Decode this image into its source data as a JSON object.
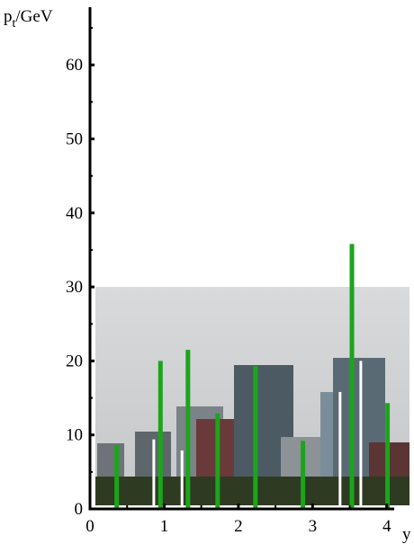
{
  "chart_data": {
    "type": "bar",
    "y_label": {
      "main": "p",
      "sub": "t",
      "unit": "/GeV"
    },
    "x_label": "y",
    "xlim": [
      0,
      4.1
    ],
    "ylim": [
      0,
      67.8
    ],
    "xticks": [
      0,
      1,
      2,
      3,
      4
    ],
    "xminor": [
      0.5,
      1.5,
      2.5,
      3.5
    ],
    "yticks": [
      0,
      10,
      20,
      30,
      40,
      50,
      60
    ],
    "yminor": [
      5,
      15,
      25,
      35,
      45,
      55,
      65
    ],
    "series": [
      {
        "color": "#1ba51b",
        "x": [
          0.36,
          0.95,
          1.32,
          1.72,
          2.23,
          2.87,
          3.53,
          4.01
        ],
        "values": [
          8.6,
          20.0,
          21.5,
          12.9,
          19.3,
          9.2,
          35.8,
          14.3
        ]
      },
      {
        "color": "#ffffff",
        "x": [
          0.86,
          1.24,
          3.37,
          3.65
        ],
        "values": [
          9.4,
          7.9,
          15.8,
          20.0
        ]
      }
    ]
  }
}
